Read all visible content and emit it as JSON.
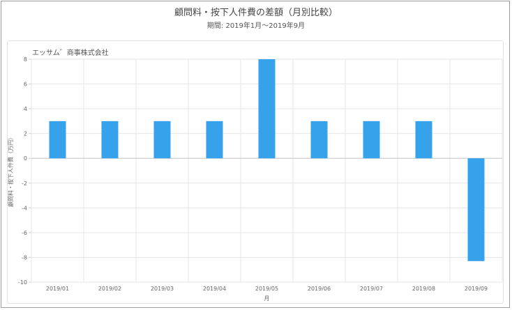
{
  "title": "顧問料・按下人件費の差額（月別比較）",
  "subtitle": "期間: 2019年1月～2019年9月",
  "company": "エッサム゛商事株式会社",
  "chart_data": {
    "type": "bar",
    "title": "顧問料・按下人件費の差額（月別比較）",
    "subtitle": "期間: 2019年1月～2019年9月",
    "xlabel": "月",
    "ylabel": "顧問料・按下人件費（万円）",
    "categories": [
      "2019/01",
      "2019/02",
      "2019/03",
      "2019/04",
      "2019/05",
      "2019/06",
      "2019/07",
      "2019/08",
      "2019/09"
    ],
    "values": [
      3,
      3,
      3,
      3,
      8,
      3,
      3,
      3,
      -8.3
    ],
    "ylim": [
      -10,
      8
    ],
    "yticks": [
      "8",
      "6",
      "4",
      "2",
      "0",
      "-2",
      "-4",
      "-6",
      "-8",
      "-10"
    ],
    "grid": true,
    "legend": "none",
    "bar_color": "#36a2eb"
  }
}
